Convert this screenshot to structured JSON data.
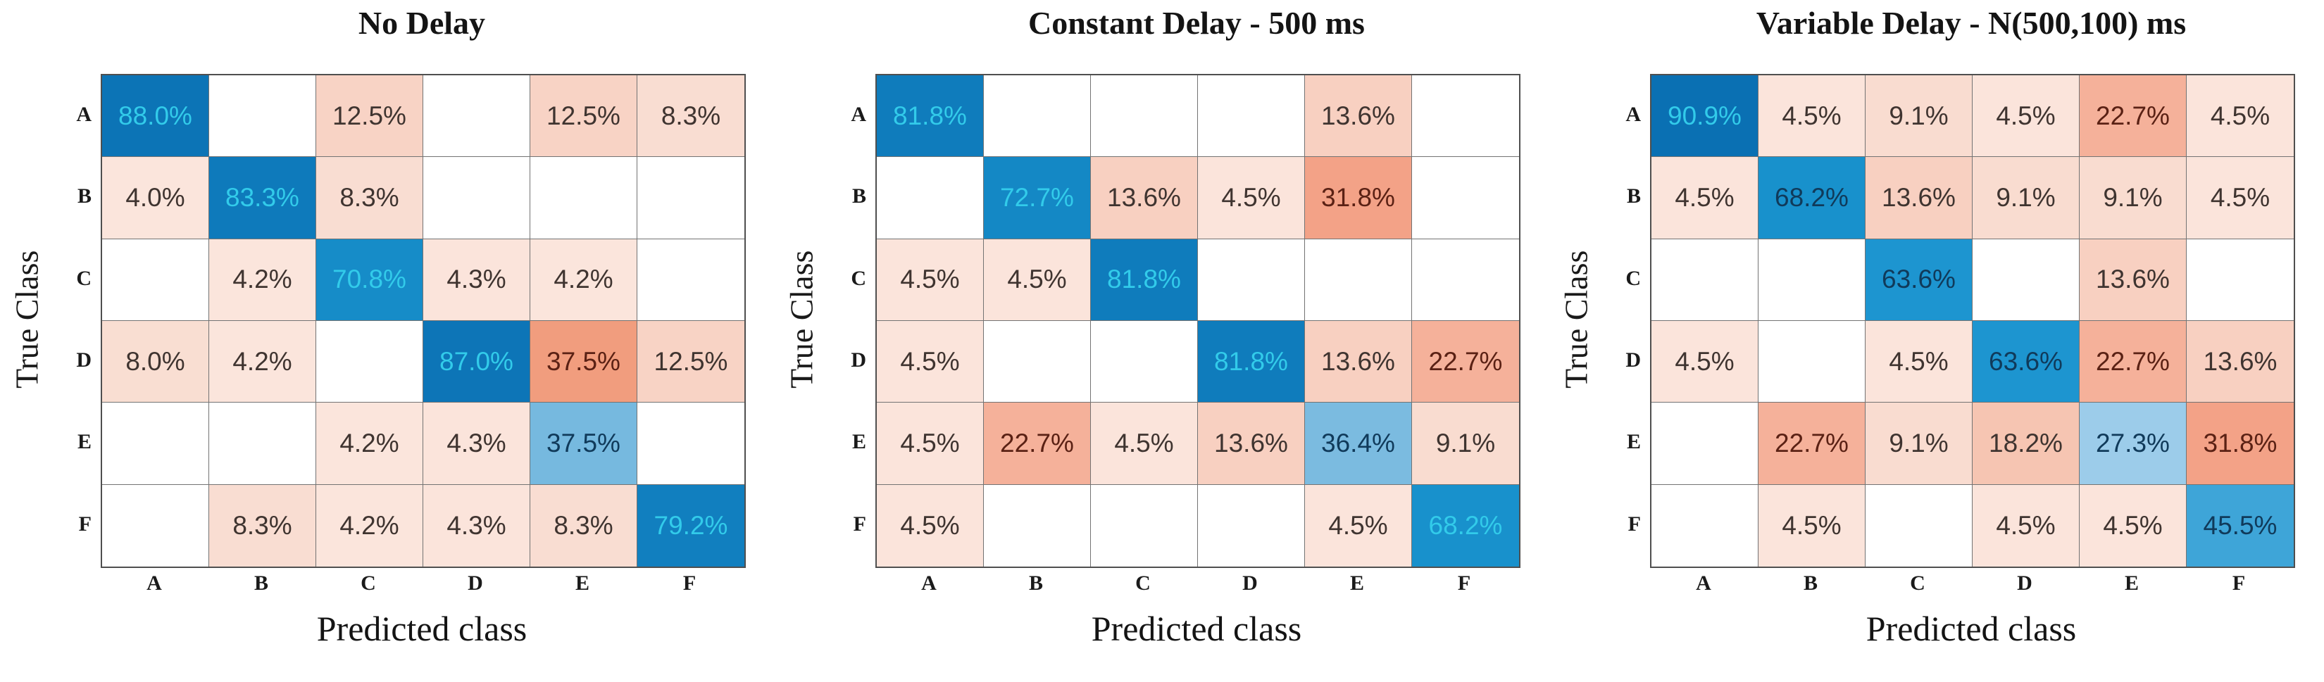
{
  "figure": {
    "classes": [
      "A",
      "B",
      "C",
      "D",
      "E",
      "F"
    ],
    "ylabel": "True Class",
    "xlabel": "Predicted class"
  },
  "chart_data": [
    {
      "type": "heatmap",
      "title": "No Delay",
      "xlabel": "Predicted class",
      "ylabel": "True Class",
      "rows": [
        "A",
        "B",
        "C",
        "D",
        "E",
        "F"
      ],
      "cols": [
        "A",
        "B",
        "C",
        "D",
        "E",
        "F"
      ],
      "unit": "%",
      "values_pct": [
        [
          88.0,
          null,
          12.5,
          null,
          12.5,
          8.3
        ],
        [
          4.0,
          83.3,
          8.3,
          null,
          null,
          null
        ],
        [
          null,
          4.2,
          70.8,
          4.3,
          4.2,
          null
        ],
        [
          8.0,
          4.2,
          null,
          87.0,
          37.5,
          12.5
        ],
        [
          null,
          null,
          4.2,
          4.3,
          37.5,
          null
        ],
        [
          null,
          8.3,
          4.2,
          4.3,
          8.3,
          79.2
        ]
      ],
      "cyan_text_min": 50
    },
    {
      "type": "heatmap",
      "title": "Constant Delay - 500 ms",
      "xlabel": "Predicted class",
      "ylabel": "True Class",
      "rows": [
        "A",
        "B",
        "C",
        "D",
        "E",
        "F"
      ],
      "cols": [
        "A",
        "B",
        "C",
        "D",
        "E",
        "F"
      ],
      "unit": "%",
      "values_pct": [
        [
          81.8,
          null,
          null,
          null,
          13.6,
          null
        ],
        [
          null,
          72.7,
          13.6,
          4.5,
          31.8,
          null
        ],
        [
          4.5,
          4.5,
          81.8,
          null,
          null,
          null
        ],
        [
          4.5,
          null,
          null,
          81.8,
          13.6,
          22.7
        ],
        [
          4.5,
          22.7,
          4.5,
          13.6,
          36.4,
          9.1
        ],
        [
          4.5,
          null,
          null,
          null,
          4.5,
          68.2
        ]
      ],
      "cyan_text_min": 50
    },
    {
      "type": "heatmap",
      "title": "Variable Delay - N(500,100) ms",
      "xlabel": "Predicted class",
      "ylabel": "True Class",
      "rows": [
        "A",
        "B",
        "C",
        "D",
        "E",
        "F"
      ],
      "cols": [
        "A",
        "B",
        "C",
        "D",
        "E",
        "F"
      ],
      "unit": "%",
      "values_pct": [
        [
          90.9,
          4.5,
          9.1,
          4.5,
          22.7,
          4.5
        ],
        [
          4.5,
          68.2,
          13.6,
          9.1,
          9.1,
          4.5
        ],
        [
          null,
          null,
          63.6,
          null,
          13.6,
          null
        ],
        [
          4.5,
          null,
          4.5,
          63.6,
          22.7,
          13.6
        ],
        [
          null,
          22.7,
          9.1,
          18.2,
          27.3,
          31.8
        ],
        [
          null,
          4.5,
          null,
          4.5,
          4.5,
          45.5
        ]
      ],
      "cyan_text_min": 80
    }
  ],
  "colors": {
    "background": "#ffffff",
    "grid_line": "#737373",
    "outer_border": "#4f4f4f",
    "label_text": "#141414",
    "diag_scale_stops": [
      [
        0,
        "#ffffff"
      ],
      [
        27,
        "#9dcdea"
      ],
      [
        37,
        "#79badf"
      ],
      [
        46,
        "#3aa4d8"
      ],
      [
        64,
        "#1c95d0"
      ],
      [
        69,
        "#1790cb"
      ],
      [
        73,
        "#1487c5"
      ],
      [
        82,
        "#0f7cbc"
      ],
      [
        88,
        "#0c74b6"
      ],
      [
        91,
        "#0a70b3"
      ]
    ],
    "offdiag_scale_stops": [
      [
        0,
        "#ffffff"
      ],
      [
        4,
        "#fbe5dc"
      ],
      [
        9,
        "#f9dcd0"
      ],
      [
        14,
        "#f8cfc0"
      ],
      [
        18,
        "#f6c6b3"
      ],
      [
        23,
        "#f5b098"
      ],
      [
        32,
        "#f3a287"
      ],
      [
        38,
        "#f19c7d"
      ]
    ],
    "text": {
      "diag_bright": "#32cbea",
      "diag_dark": "#103a5a",
      "off_low": "#3f3430",
      "off_high": "#5a2114",
      "off_threshold": 20
    }
  }
}
